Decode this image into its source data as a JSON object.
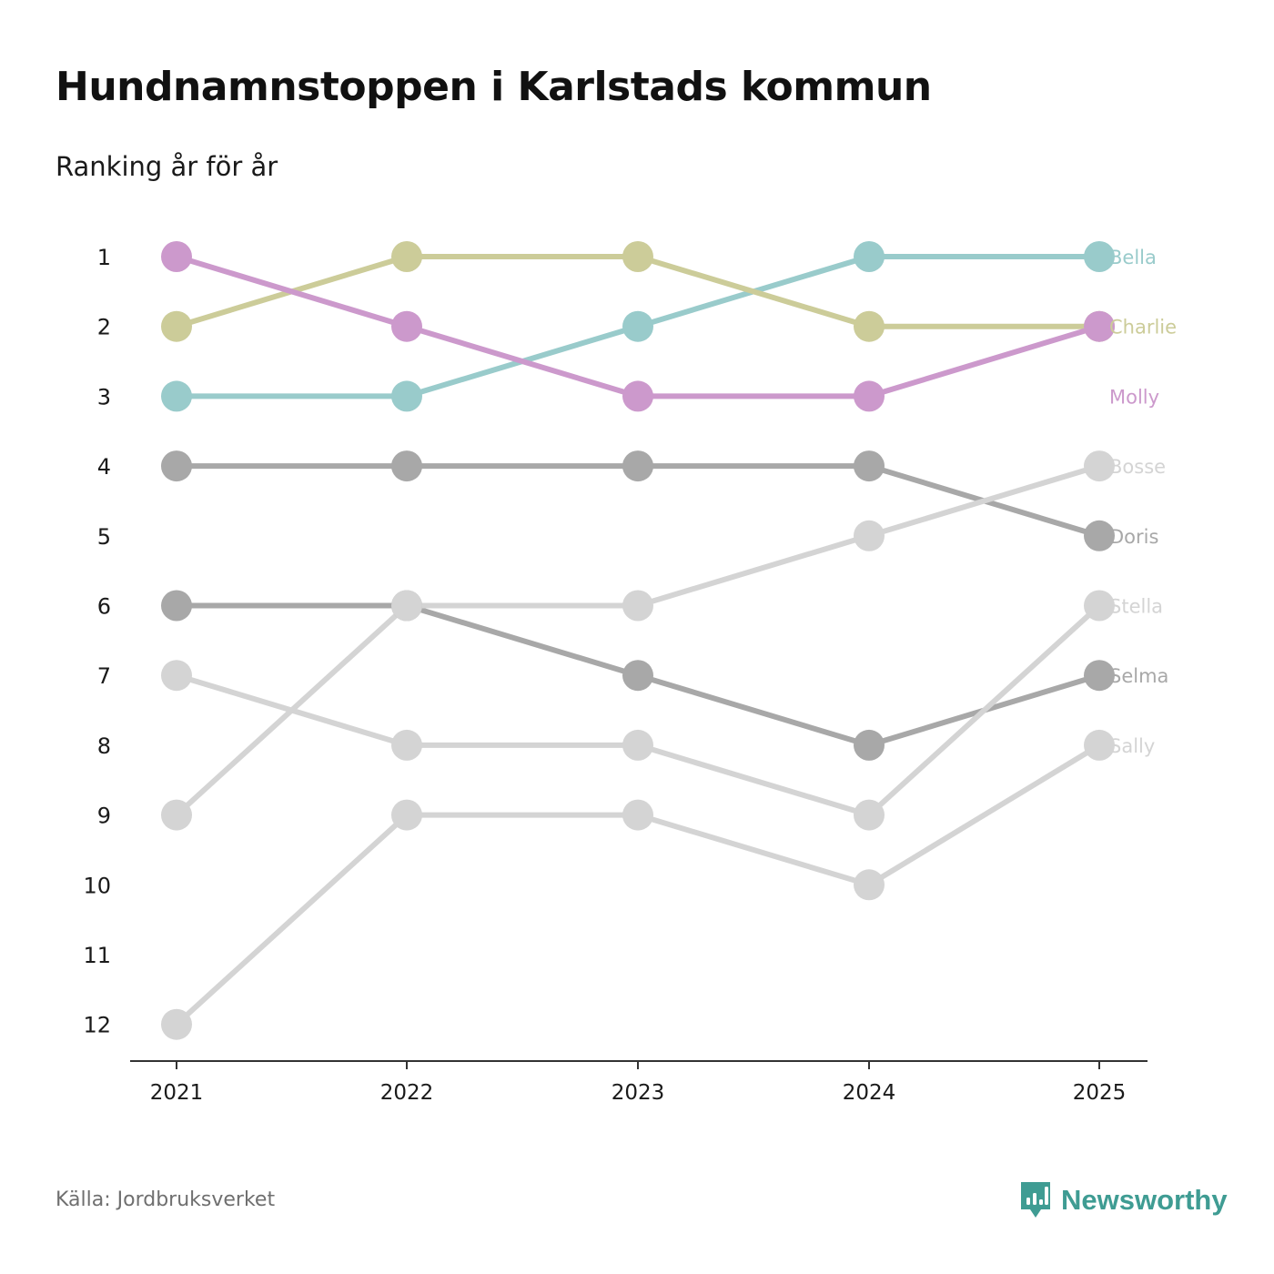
{
  "header": {
    "title": "Hundnamnstoppen i Karlstads kommun",
    "subtitle": "Ranking år för år"
  },
  "footer": {
    "source": "Källa: Jordbruksverket",
    "brand": "Newsworthy",
    "brand_color": "#3f9c93"
  },
  "chart_data": {
    "type": "line",
    "title": "Hundnamnstoppen i Karlstads kommun",
    "subtitle": "Ranking år för år",
    "xlabel": "",
    "ylabel": "",
    "x": [
      "2021",
      "2022",
      "2023",
      "2024",
      "2025"
    ],
    "y_ticks": [
      "1",
      "2",
      "3",
      "4",
      "5",
      "6",
      "7",
      "8",
      "9",
      "10",
      "11",
      "12"
    ],
    "ylim": [
      1,
      12
    ],
    "y_inverted": true,
    "grid": false,
    "legend": "direct labels at right end of lines",
    "series": [
      {
        "name": "Selma",
        "values": [
          6,
          6,
          7,
          8,
          7
        ],
        "color": "#a8a8a8"
      },
      {
        "name": "Doris",
        "values": [
          4,
          4,
          4,
          4,
          5
        ],
        "color": "#a8a8a8"
      },
      {
        "name": "Sally",
        "values": [
          12,
          9,
          9,
          10,
          8
        ],
        "color": "#d4d4d4"
      },
      {
        "name": "Stella",
        "values": [
          7,
          8,
          8,
          9,
          6
        ],
        "color": "#d4d4d4"
      },
      {
        "name": "Bosse",
        "values": [
          9,
          6,
          6,
          5,
          4
        ],
        "color": "#d4d4d4"
      },
      {
        "name": "Bella",
        "values": [
          3,
          3,
          2,
          1,
          1
        ],
        "color": "#99cbcb"
      },
      {
        "name": "Charlie",
        "values": [
          2,
          1,
          1,
          2,
          2
        ],
        "color": "#cccc99"
      },
      {
        "name": "Molly",
        "values": [
          1,
          2,
          3,
          3,
          2
        ],
        "color": "#cc99cc"
      }
    ]
  }
}
